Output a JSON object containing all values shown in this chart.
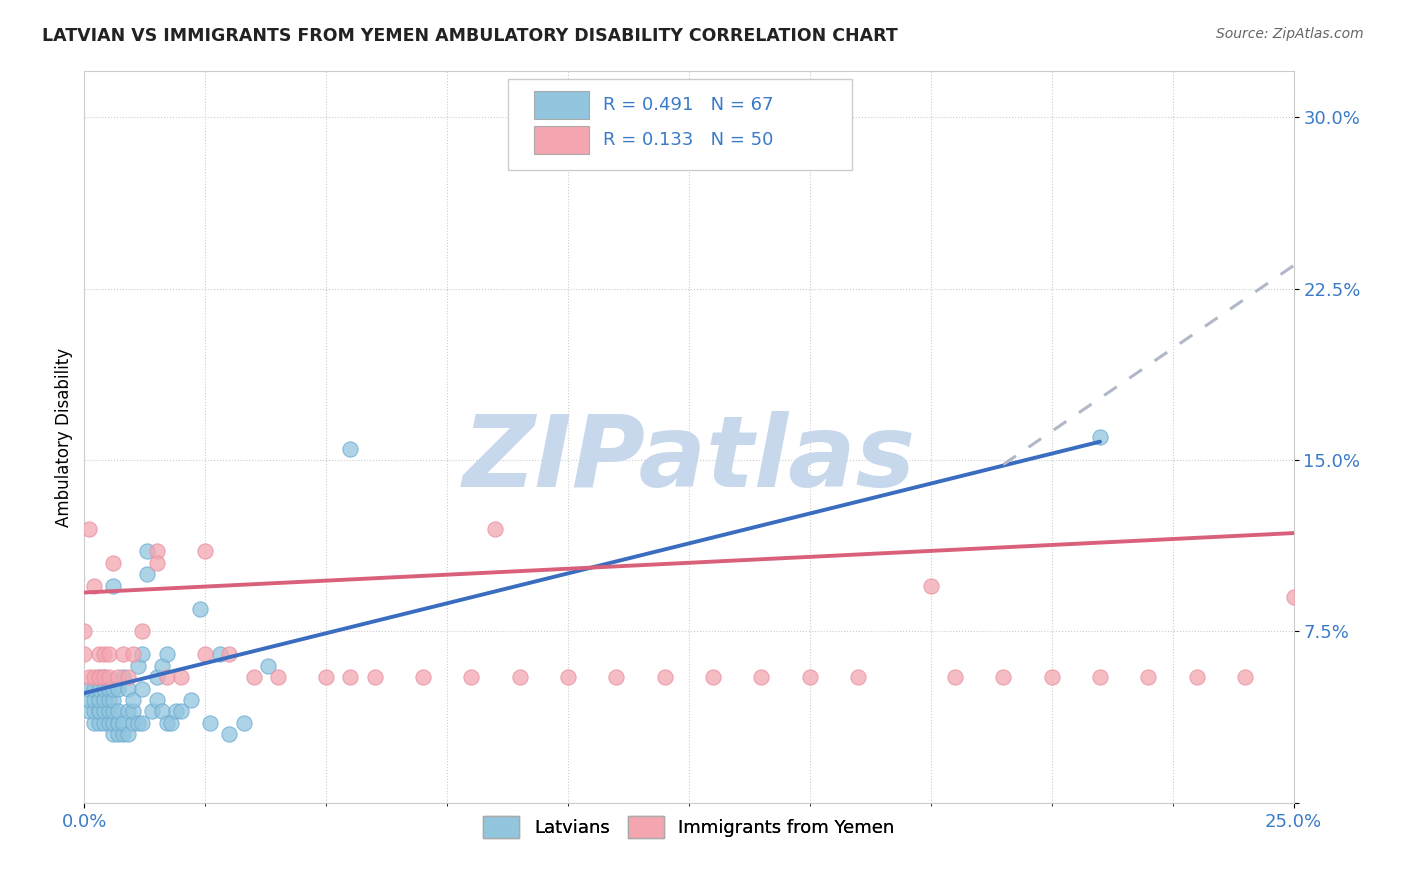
{
  "title": "LATVIAN VS IMMIGRANTS FROM YEMEN AMBULATORY DISABILITY CORRELATION CHART",
  "source": "Source: ZipAtlas.com",
  "ylabel": "Ambulatory Disability",
  "ytick_vals": [
    0.0,
    0.075,
    0.15,
    0.225,
    0.3
  ],
  "ytick_labels": [
    "",
    "7.5%",
    "15.0%",
    "22.5%",
    "30.0%"
  ],
  "xlim": [
    0.0,
    0.25
  ],
  "ylim": [
    0.0,
    0.32
  ],
  "color_latvian": "#92c5de",
  "color_yemen": "#f4a6b0",
  "color_trend_latvian": "#3a6dbf",
  "color_trend_yemen": "#d9607a",
  "color_trend_dashed": "#b0b8c8",
  "watermark_color": "#c8d8ec",
  "latvian_x": [
    0.001,
    0.001,
    0.001,
    0.002,
    0.002,
    0.002,
    0.002,
    0.003,
    0.003,
    0.003,
    0.003,
    0.003,
    0.003,
    0.004,
    0.004,
    0.004,
    0.004,
    0.004,
    0.005,
    0.005,
    0.005,
    0.005,
    0.006,
    0.006,
    0.006,
    0.006,
    0.006,
    0.006,
    0.007,
    0.007,
    0.007,
    0.007,
    0.008,
    0.008,
    0.008,
    0.009,
    0.009,
    0.009,
    0.01,
    0.01,
    0.01,
    0.011,
    0.011,
    0.012,
    0.012,
    0.012,
    0.013,
    0.013,
    0.014,
    0.015,
    0.015,
    0.016,
    0.016,
    0.017,
    0.017,
    0.018,
    0.019,
    0.02,
    0.022,
    0.024,
    0.026,
    0.028,
    0.03,
    0.033,
    0.038,
    0.055,
    0.21
  ],
  "latvian_y": [
    0.04,
    0.045,
    0.05,
    0.035,
    0.04,
    0.045,
    0.05,
    0.035,
    0.04,
    0.04,
    0.045,
    0.05,
    0.055,
    0.035,
    0.04,
    0.045,
    0.05,
    0.055,
    0.035,
    0.04,
    0.045,
    0.05,
    0.03,
    0.035,
    0.04,
    0.045,
    0.05,
    0.095,
    0.03,
    0.035,
    0.04,
    0.05,
    0.03,
    0.035,
    0.055,
    0.03,
    0.04,
    0.05,
    0.035,
    0.04,
    0.045,
    0.035,
    0.06,
    0.035,
    0.05,
    0.065,
    0.1,
    0.11,
    0.04,
    0.045,
    0.055,
    0.04,
    0.06,
    0.035,
    0.065,
    0.035,
    0.04,
    0.04,
    0.045,
    0.085,
    0.035,
    0.065,
    0.03,
    0.035,
    0.06,
    0.155,
    0.16
  ],
  "yemen_x": [
    0.0,
    0.0,
    0.001,
    0.001,
    0.002,
    0.002,
    0.003,
    0.003,
    0.004,
    0.004,
    0.005,
    0.005,
    0.006,
    0.007,
    0.008,
    0.009,
    0.01,
    0.012,
    0.015,
    0.017,
    0.02,
    0.025,
    0.03,
    0.04,
    0.05,
    0.06,
    0.07,
    0.08,
    0.09,
    0.1,
    0.11,
    0.12,
    0.13,
    0.14,
    0.15,
    0.16,
    0.18,
    0.19,
    0.2,
    0.21,
    0.22,
    0.23,
    0.24,
    0.25,
    0.015,
    0.025,
    0.035,
    0.055,
    0.085,
    0.175
  ],
  "yemen_y": [
    0.065,
    0.075,
    0.055,
    0.12,
    0.055,
    0.095,
    0.055,
    0.065,
    0.055,
    0.065,
    0.055,
    0.065,
    0.105,
    0.055,
    0.065,
    0.055,
    0.065,
    0.075,
    0.11,
    0.055,
    0.055,
    0.065,
    0.065,
    0.055,
    0.055,
    0.055,
    0.055,
    0.055,
    0.055,
    0.055,
    0.055,
    0.055,
    0.055,
    0.055,
    0.055,
    0.055,
    0.055,
    0.055,
    0.055,
    0.055,
    0.055,
    0.055,
    0.055,
    0.09,
    0.105,
    0.11,
    0.055,
    0.055,
    0.12,
    0.095
  ],
  "trend_latvian_x0": 0.0,
  "trend_latvian_x1": 0.21,
  "trend_latvian_y0": 0.048,
  "trend_latvian_y1": 0.158,
  "trend_dashed_x0": 0.19,
  "trend_dashed_x1": 0.25,
  "trend_dashed_y0": 0.148,
  "trend_dashed_y1": 0.235,
  "trend_yemen_x0": 0.0,
  "trend_yemen_x1": 0.25,
  "trend_yemen_y0": 0.092,
  "trend_yemen_y1": 0.118
}
